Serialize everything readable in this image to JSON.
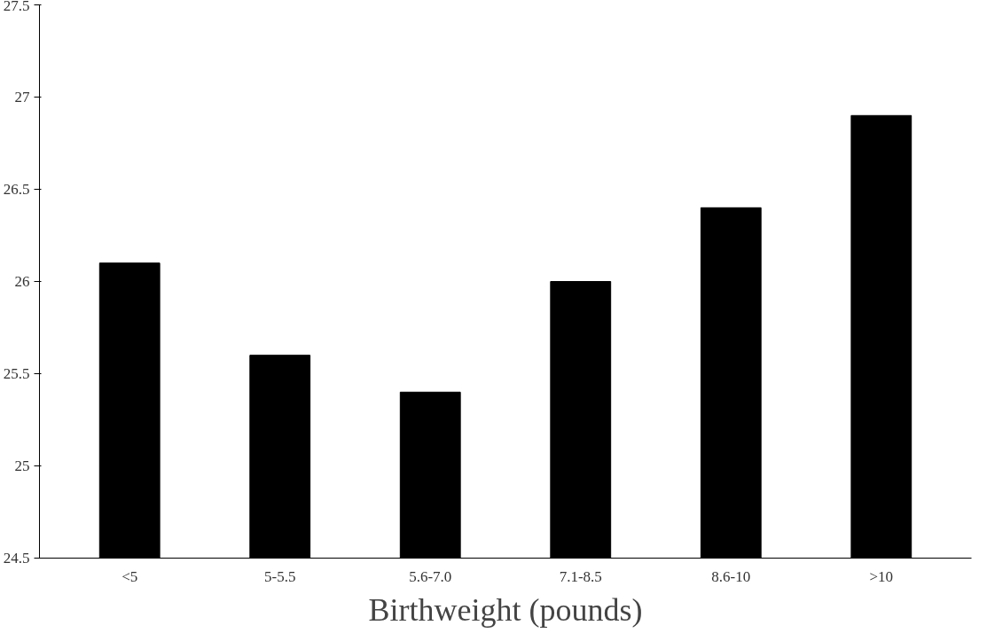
{
  "chart_data": {
    "type": "bar",
    "xlabel": "Birthweight (pounds)",
    "categories": [
      "<5",
      "5-5.5",
      "5.6-7.0",
      "7.1-8.5",
      "8.6-10",
      ">10"
    ],
    "values": [
      26.1,
      25.6,
      25.4,
      26.0,
      26.4,
      26.9
    ],
    "color": "#000000",
    "ylim": [
      24.5,
      27.5
    ],
    "yticks": [
      24.5,
      25,
      25.5,
      26,
      26.5,
      27,
      27.5
    ],
    "grid": false
  }
}
